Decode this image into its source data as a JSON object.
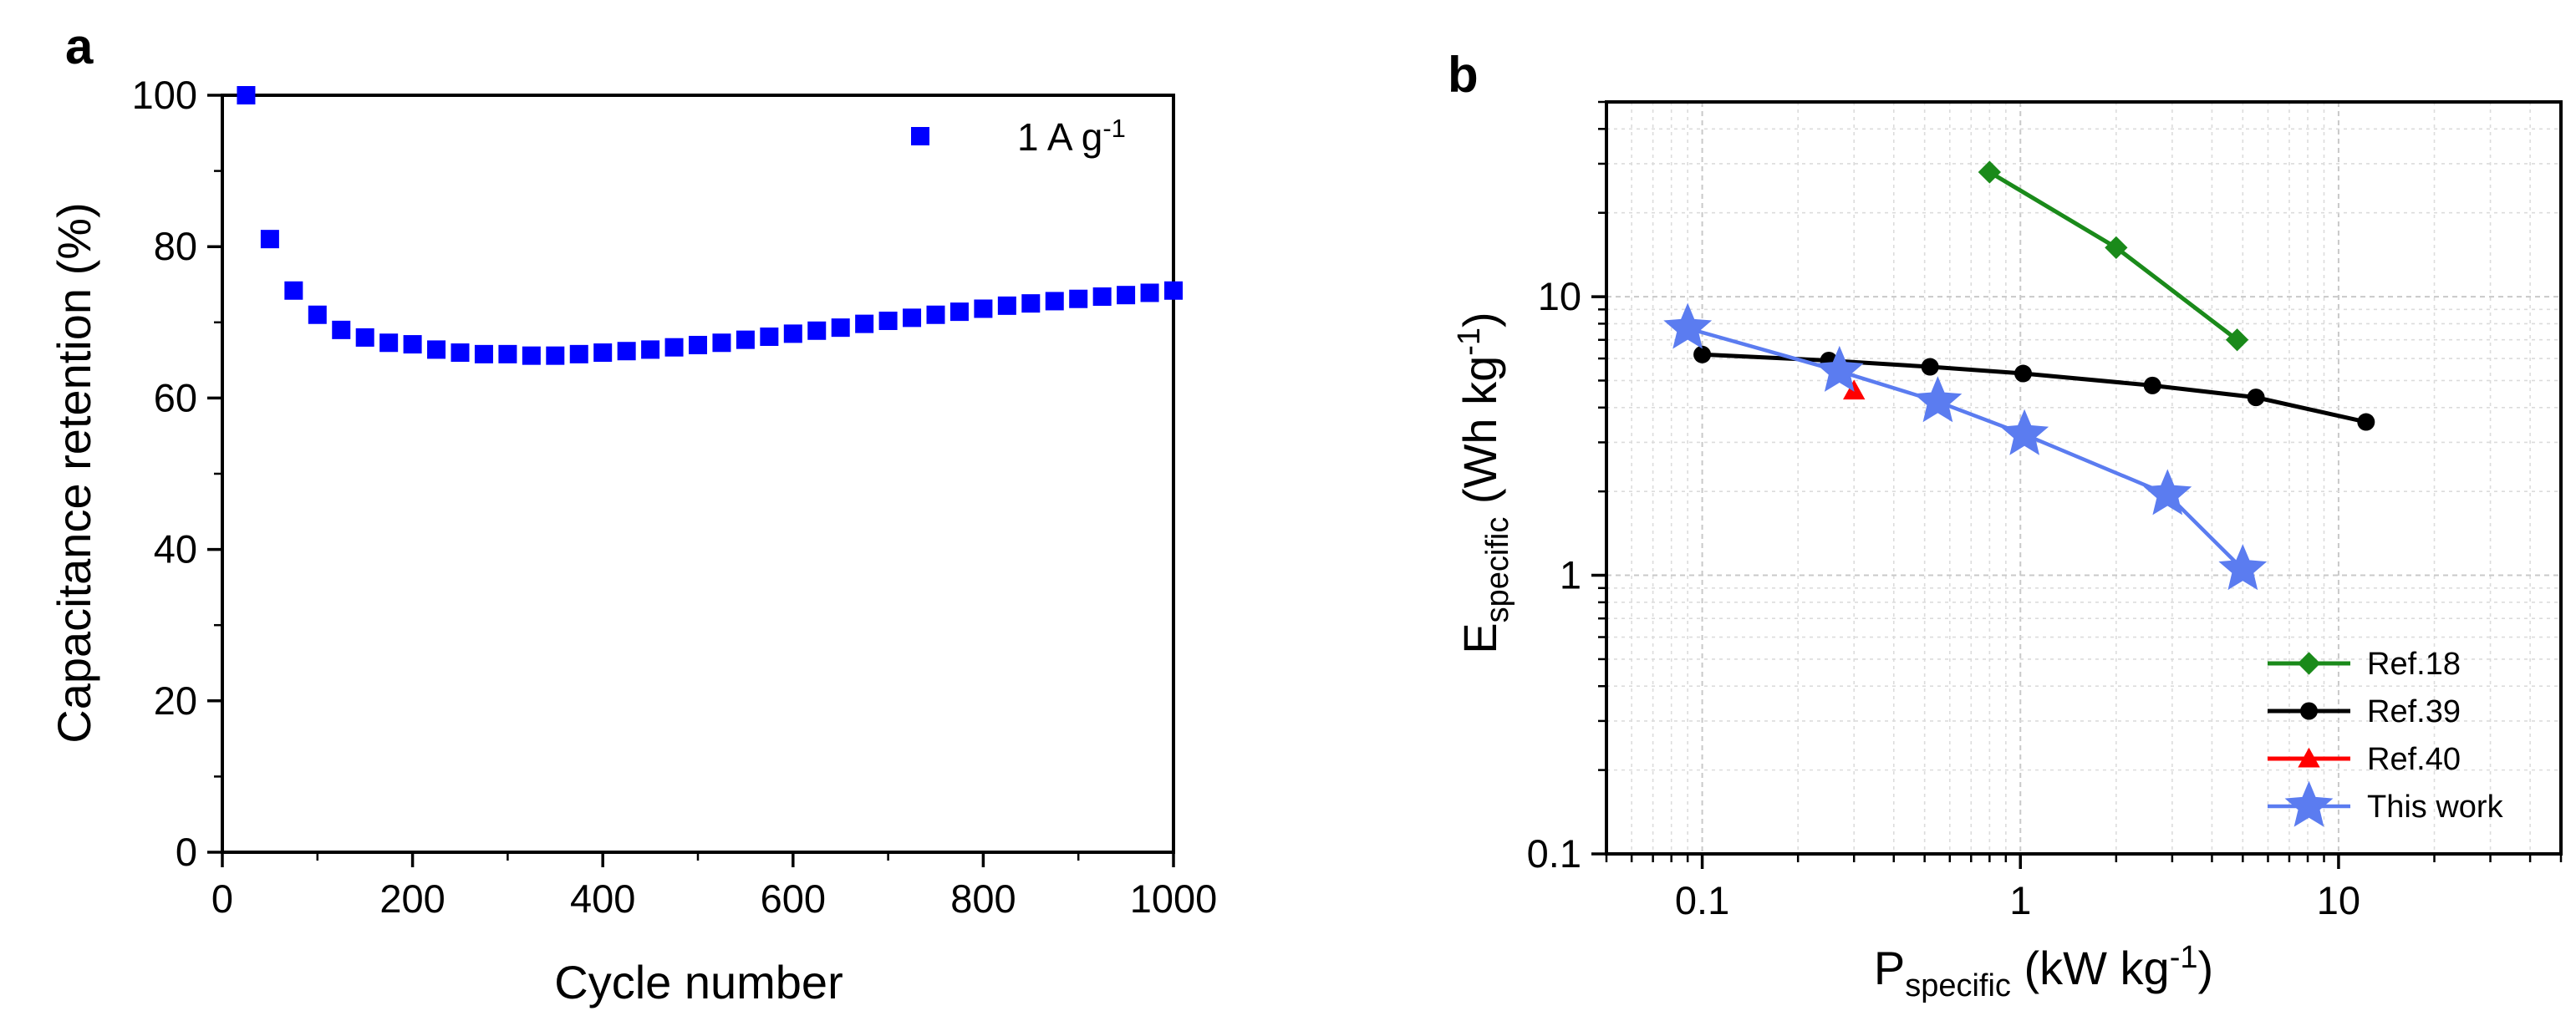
{
  "panels": {
    "a": {
      "letter": "a"
    },
    "b": {
      "letter": "b"
    }
  },
  "colors": {
    "retention": "#0000ff",
    "ref18": "#1a8a1a",
    "ref39": "#000000",
    "ref40": "#ff0000",
    "this_work": "#5b7cf0"
  },
  "chart_data": [
    {
      "type": "scatter",
      "panel": "a",
      "title": "",
      "xlabel": "Cycle number",
      "ylabel": "Capacitance retention (%)",
      "xlim": [
        0,
        1000
      ],
      "ylim": [
        0,
        100
      ],
      "xticks": [
        0,
        200,
        400,
        600,
        800,
        1000
      ],
      "xtick_labels": [
        "0",
        "200",
        "400",
        "600",
        "800",
        "1000"
      ],
      "yticks": [
        0,
        20,
        40,
        60,
        80,
        100
      ],
      "ytick_labels": [
        "0",
        "20",
        "40",
        "60",
        "80",
        "100"
      ],
      "grid": false,
      "legend_position": "top-right",
      "series": [
        {
          "name": "1 A g-1",
          "label_main": "1 A g",
          "label_sup": "-1",
          "marker": "square",
          "x": [
            25,
            50,
            75,
            100,
            125,
            150,
            175,
            200,
            225,
            250,
            275,
            300,
            325,
            350,
            375,
            400,
            425,
            450,
            475,
            500,
            525,
            550,
            575,
            600,
            625,
            650,
            675,
            700,
            725,
            750,
            775,
            800,
            825,
            850,
            875,
            900,
            925,
            950,
            975,
            1000
          ],
          "values": [
            100,
            81,
            74.2,
            71,
            69,
            68,
            67.3,
            67.1,
            66.4,
            66,
            65.8,
            65.8,
            65.6,
            65.6,
            65.8,
            66,
            66.2,
            66.4,
            66.7,
            67,
            67.3,
            67.7,
            68.1,
            68.5,
            68.9,
            69.3,
            69.8,
            70.2,
            70.6,
            71,
            71.4,
            71.8,
            72.2,
            72.5,
            72.8,
            73.1,
            73.4,
            73.6,
            73.9,
            74.2
          ]
        }
      ]
    },
    {
      "type": "line",
      "panel": "b",
      "scale": "log-log",
      "title": "",
      "xlabel_main": "P",
      "xlabel_sub": "specific",
      "xlabel_unit": " (kW kg",
      "xlabel_sup": "-1",
      "xlabel_close": ")",
      "ylabel_main": "E",
      "ylabel_sub": "specific",
      "ylabel_unit": " (Wh kg",
      "ylabel_sup": "-1",
      "ylabel_close": ")",
      "xlim": [
        0.05,
        50
      ],
      "ylim": [
        0.1,
        50
      ],
      "xticks": [
        0.1,
        1,
        10
      ],
      "xtick_labels": [
        "0.1",
        "1",
        "10"
      ],
      "yticks": [
        0.1,
        1,
        10
      ],
      "ytick_labels": [
        "0.1",
        "1",
        "10"
      ],
      "grid": true,
      "legend_position": "bottom-right",
      "series": [
        {
          "name": "Ref.18",
          "marker": "diamond",
          "color": "#1a8a1a",
          "x": [
            0.8,
            2.0,
            4.8
          ],
          "values": [
            28,
            15,
            7.0
          ]
        },
        {
          "name": "Ref.39",
          "marker": "circle",
          "color": "#000000",
          "x": [
            0.1,
            0.25,
            0.52,
            1.02,
            2.6,
            5.5,
            12.2
          ],
          "values": [
            6.2,
            5.9,
            5.6,
            5.3,
            4.8,
            4.35,
            3.55
          ]
        },
        {
          "name": "Ref.40",
          "marker": "triangle",
          "color": "#ff0000",
          "x": [
            0.3
          ],
          "values": [
            4.6
          ]
        },
        {
          "name": "This work",
          "marker": "star",
          "color": "#5b7cf0",
          "x": [
            0.09,
            0.27,
            0.55,
            1.03,
            2.9,
            5.0
          ],
          "values": [
            7.7,
            5.4,
            4.2,
            3.2,
            1.95,
            1.05
          ]
        }
      ]
    }
  ]
}
